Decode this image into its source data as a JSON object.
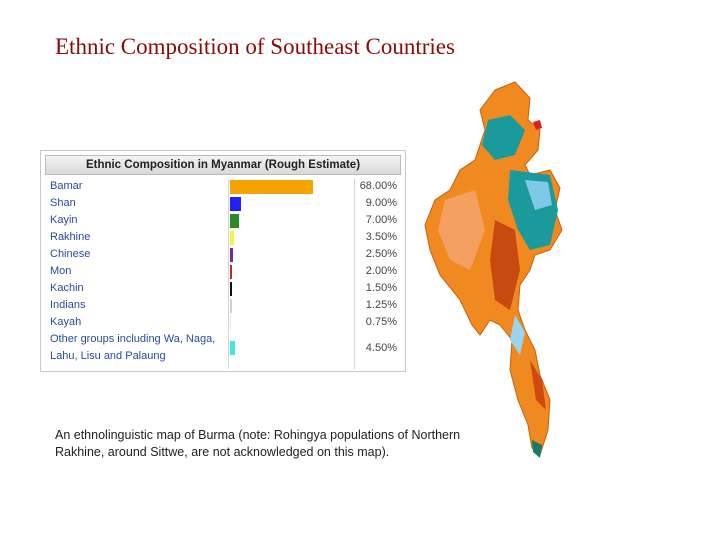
{
  "title": "Ethnic Composition of Southeast Countries",
  "caption": "An ethnolinguistic map of Burma (note: Rohingya populations of Northern Rakhine, around Sittwe, are not acknowledged on this map).",
  "chart_data": {
    "type": "bar",
    "orientation": "horizontal",
    "title": "Ethnic Composition in Myanmar (Rough Estimate)",
    "categories": [
      "Bamar",
      "Shan",
      "Kayin",
      "Rakhine",
      "Chinese",
      "Mon",
      "Kachin",
      "Indians",
      "Kayah",
      "Other groups including Wa, Naga, Lahu, Lisu and Palaung"
    ],
    "values": [
      68,
      9,
      7,
      3.5,
      2.5,
      2,
      1.5,
      1.25,
      0.75,
      4.5
    ],
    "value_labels": [
      "68.00%",
      "9.00%",
      "7.00%",
      "3.50%",
      "2.50%",
      "2.00%",
      "1.50%",
      "1.25%",
      "0.75%",
      "4.50%"
    ],
    "colors": [
      "#f5a300",
      "#1f1fff",
      "#2a8a2a",
      "#f4f43c",
      "#7a2a8a",
      "#b03030",
      "#111111",
      "#cfcfcf",
      "#e8e8e8",
      "#3ee6e6"
    ]
  }
}
